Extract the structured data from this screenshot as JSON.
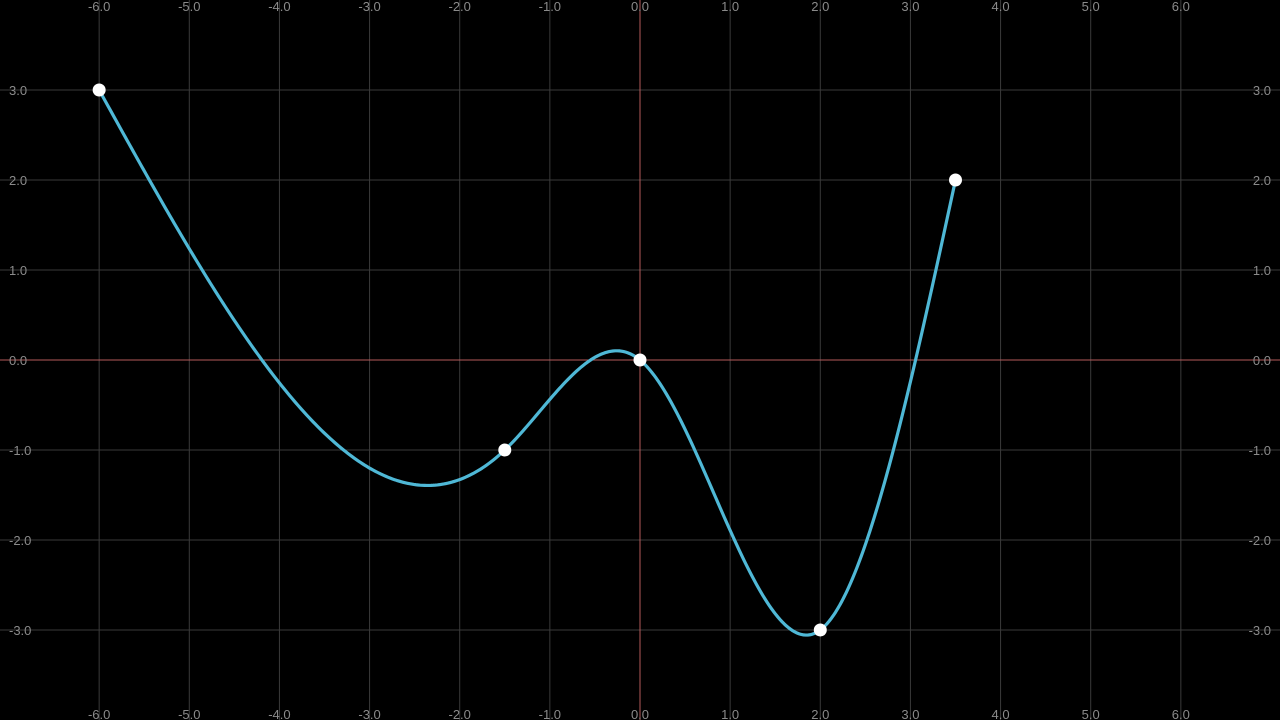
{
  "chart_data": {
    "type": "line",
    "title": "",
    "xlabel": "",
    "ylabel": "",
    "xlim": [
      -7.1,
      7.1
    ],
    "ylim": [
      -4.0,
      4.0
    ],
    "grid": true,
    "x_ticks": [
      -6,
      -5,
      -4,
      -3,
      -2,
      -1,
      0,
      1,
      2,
      3,
      4,
      5,
      6
    ],
    "x_tick_labels": [
      "-6.0",
      "-5.0",
      "-4.0",
      "-3.0",
      "-2.0",
      "-1.0",
      "0.0",
      "1.0",
      "2.0",
      "3.0",
      "4.0",
      "5.0",
      "6.0"
    ],
    "y_ticks": [
      3,
      2,
      1,
      0,
      -1,
      -2,
      -3
    ],
    "y_tick_labels": [
      "3.0",
      "2.0",
      "1.0",
      "0.0",
      "-1.0",
      "-2.0",
      "-3.0"
    ],
    "x_tick_label_positions": [
      "top",
      "bottom"
    ],
    "y_tick_label_positions": [
      "left",
      "right"
    ],
    "series": [
      {
        "values": [
          {
            "x": -6.0,
            "y": 3.0
          },
          {
            "x": -1.5,
            "y": -1.0
          },
          {
            "x": 0.0,
            "y": 0.0
          },
          {
            "x": 2.0,
            "y": -3.0
          },
          {
            "x": 3.5,
            "y": 2.0
          }
        ],
        "interpolation": "smooth spline",
        "color": "#4fb8d6",
        "point_color": "#ffffff"
      }
    ],
    "colors": {
      "background": "#000000",
      "grid": "#3a3a3a",
      "axes": "#b55a5a",
      "tick_labels": "#8a8a8a"
    }
  }
}
